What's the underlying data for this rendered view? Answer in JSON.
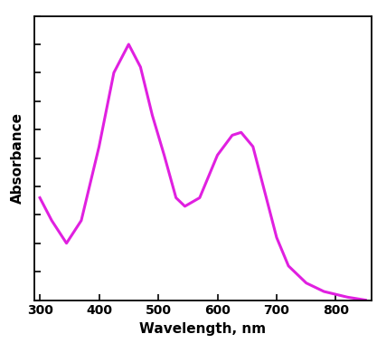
{
  "chart_data": {
    "type": "line",
    "x_label": "Wavelength, nm",
    "y_label": "Absorbance",
    "x": [
      300,
      320,
      345,
      370,
      400,
      425,
      450,
      470,
      490,
      510,
      530,
      545,
      570,
      600,
      625,
      640,
      660,
      680,
      700,
      720,
      750,
      780,
      820,
      850
    ],
    "values": [
      0.36,
      0.28,
      0.2,
      0.28,
      0.54,
      0.8,
      0.9,
      0.82,
      0.65,
      0.51,
      0.36,
      0.33,
      0.36,
      0.51,
      0.58,
      0.59,
      0.54,
      0.38,
      0.22,
      0.12,
      0.06,
      0.03,
      0.01,
      0.0
    ],
    "color": "#e020e0",
    "xlim": [
      290,
      860
    ],
    "xticks": [
      300,
      400,
      500,
      600,
      700,
      800
    ],
    "ylim": [
      0,
      1
    ],
    "yticks": [
      0,
      0.1,
      0.2,
      0.3,
      0.4,
      0.5,
      0.6,
      0.7,
      0.8,
      0.9,
      1
    ],
    "tick_labels": "x"
  }
}
